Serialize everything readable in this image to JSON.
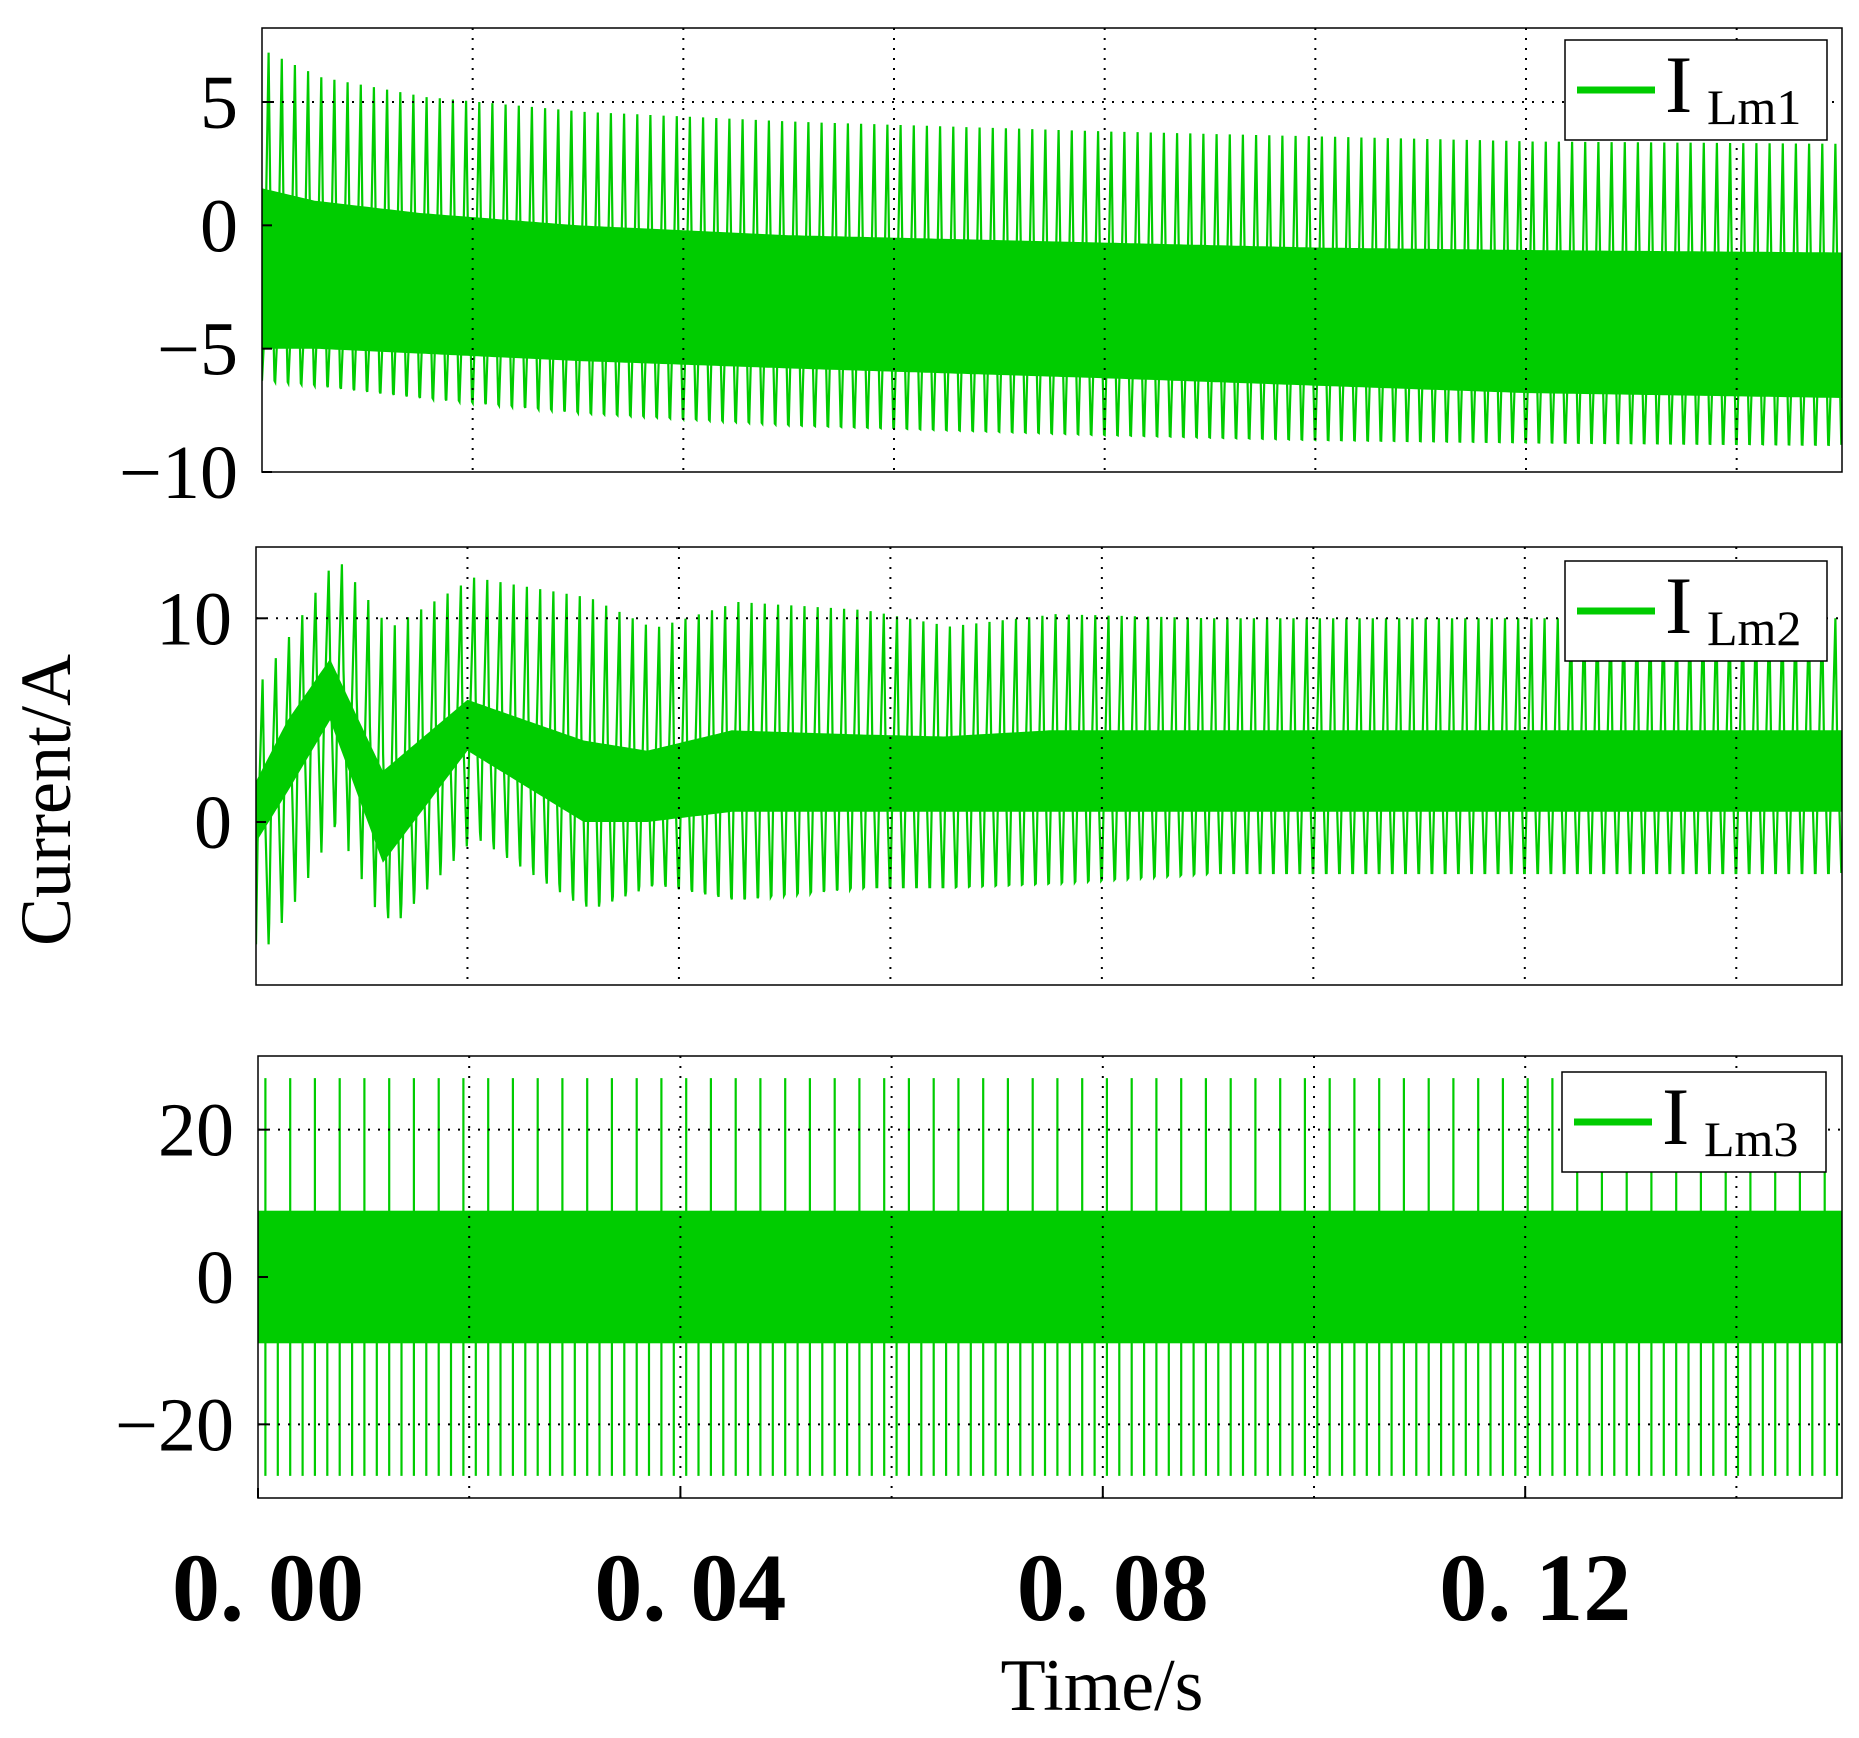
{
  "chart_data": [
    {
      "type": "line",
      "panel": "top",
      "legend_location": "top-right",
      "series": [
        {
          "name": "I_Lm1",
          "label": "I",
          "label_subscript": "Lm1",
          "color": "#00cc00",
          "oscillation_frequency_hz": 800,
          "envelope_x": [
            0.0,
            0.005,
            0.015,
            0.03,
            0.05,
            0.08,
            0.1,
            0.12,
            0.15
          ],
          "envelope_max": [
            7.0,
            6.0,
            5.2,
            4.6,
            4.2,
            3.8,
            3.6,
            3.4,
            3.3
          ],
          "envelope_min": [
            -6.3,
            -6.5,
            -7.0,
            -7.6,
            -8.1,
            -8.5,
            -8.7,
            -8.8,
            -8.9
          ],
          "upper_band_min": [
            1.5,
            1.0,
            0.5,
            0.0,
            -0.4,
            -0.7,
            -0.9,
            -1.0,
            -1.1
          ],
          "lower_band_max": [
            -5.0,
            -5.0,
            -5.2,
            -5.5,
            -5.8,
            -6.2,
            -6.5,
            -6.8,
            -7.0
          ]
        }
      ],
      "xlim": [
        0.0,
        0.15
      ],
      "ylim": [
        -10,
        8
      ],
      "yticks": [
        5,
        0,
        -5,
        -10
      ],
      "ytick_labels": [
        "5",
        "0",
        "−5",
        "−10"
      ],
      "xgrid": [
        0.02,
        0.04,
        0.06,
        0.08,
        0.1,
        0.12,
        0.14
      ],
      "ygrid": [
        5
      ]
    },
    {
      "type": "line",
      "panel": "middle",
      "legend_location": "top-right",
      "series": [
        {
          "name": "I_Lm2",
          "label": "I",
          "label_subscript": "Lm2",
          "color": "#00cc00",
          "oscillation_frequency_hz": 800,
          "envelope_x": [
            0.0,
            0.003,
            0.007,
            0.012,
            0.02,
            0.031,
            0.037,
            0.045,
            0.057,
            0.065,
            0.075,
            0.09,
            0.15
          ],
          "envelope_max": [
            7.0,
            9.5,
            13.0,
            9.5,
            12.0,
            11.0,
            9.5,
            10.8,
            10.4,
            9.6,
            10.2,
            10.0,
            10.0
          ],
          "envelope_min": [
            -6.0,
            -3.5,
            0.5,
            -5.0,
            -0.5,
            -4.2,
            -3.0,
            -3.8,
            -3.2,
            -3.2,
            -3.0,
            -2.5,
            -2.5
          ],
          "upper_band_min": [
            2.0,
            5.0,
            8.0,
            2.5,
            6.0,
            4.0,
            3.5,
            4.5,
            4.3,
            4.2,
            4.5,
            4.5,
            4.5
          ],
          "lower_band_max": [
            -1.0,
            1.5,
            5.0,
            -2.0,
            3.5,
            0.0,
            0.0,
            0.5,
            0.5,
            0.5,
            0.5,
            0.5,
            0.5
          ]
        }
      ],
      "xlim": [
        0.0,
        0.15
      ],
      "ylim": [
        -8,
        13.5
      ],
      "yticks": [
        10,
        0
      ],
      "ytick_labels": [
        "10",
        "0"
      ],
      "xgrid": [
        0.02,
        0.04,
        0.06,
        0.08,
        0.1,
        0.12,
        0.14
      ],
      "ygrid": [
        10
      ]
    },
    {
      "type": "line",
      "panel": "bottom",
      "legend_location": "top-right",
      "series": [
        {
          "name": "I_Lm3",
          "label": "I",
          "label_subscript": "Lm3",
          "color": "#00cc00",
          "oscillation_frequency_hz": 800,
          "spike_count": 64,
          "spike_max": 27,
          "spike_min": -27,
          "band_max": 9,
          "band_min": -9
        }
      ],
      "xlim": [
        0.0,
        0.15
      ],
      "ylim": [
        -30,
        30
      ],
      "yticks": [
        20,
        0,
        -20
      ],
      "ytick_labels": [
        "20",
        "0",
        "−20"
      ],
      "xticks": [
        0.0,
        0.04,
        0.08,
        0.12
      ],
      "xtick_labels": [
        "0. 00",
        "0. 04",
        "0. 08",
        "0. 12"
      ],
      "xgrid": [
        0.02,
        0.04,
        0.06,
        0.08,
        0.1,
        0.12,
        0.14
      ],
      "ygrid": [
        20,
        -20
      ]
    }
  ],
  "axes": {
    "ylabel": "Current/A",
    "xlabel": "Time/s"
  },
  "style": {
    "line_color": "#00cc00",
    "grid": "dotted"
  }
}
